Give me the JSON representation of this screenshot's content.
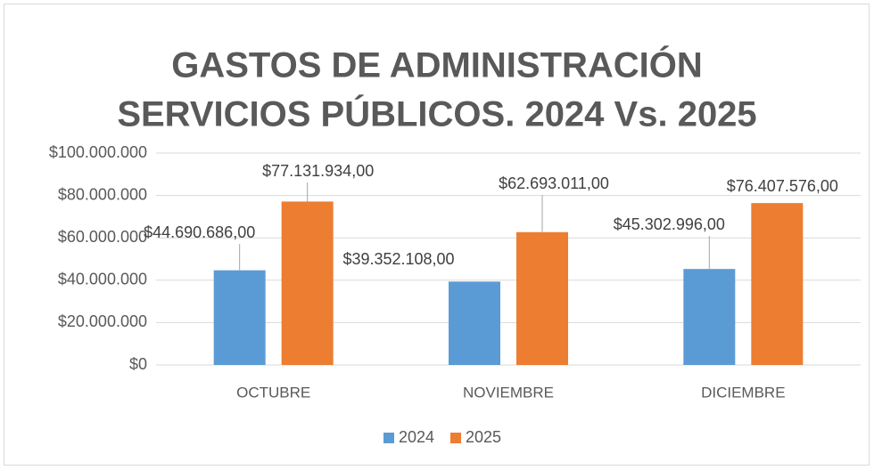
{
  "chart_data": {
    "type": "bar",
    "title": [
      "GASTOS DE ADMINISTRACIÓN",
      "SERVICIOS PÚBLICOS. 2024 Vs. 2025"
    ],
    "categories": [
      "OCTUBRE",
      "NOVIEMBRE",
      "DICIEMBRE"
    ],
    "series": [
      {
        "name": "2024",
        "color": "#5b9bd5",
        "values": [
          44690686,
          39352108,
          45302996
        ],
        "value_labels": [
          "$44.690.686,00",
          "$39.352.108,00",
          "$45.302.996,00"
        ]
      },
      {
        "name": "2025",
        "color": "#ed7d31",
        "values": [
          77131934,
          62693011,
          76407576
        ],
        "value_labels": [
          "$77.131.934,00",
          "$62.693.011,00",
          "$76.407.576,00"
        ]
      }
    ],
    "ylim": [
      0,
      100000000
    ],
    "yticks": [
      {
        "value": 0,
        "label": "$0"
      },
      {
        "value": 20000000,
        "label": "$20.000.000"
      },
      {
        "value": 40000000,
        "label": "$40.000.000"
      },
      {
        "value": 60000000,
        "label": "$60.000.000"
      },
      {
        "value": 80000000,
        "label": "$80.000.000"
      },
      {
        "value": 100000000,
        "label": "$100.000.000"
      }
    ],
    "grid": true,
    "legend": "bottom"
  }
}
